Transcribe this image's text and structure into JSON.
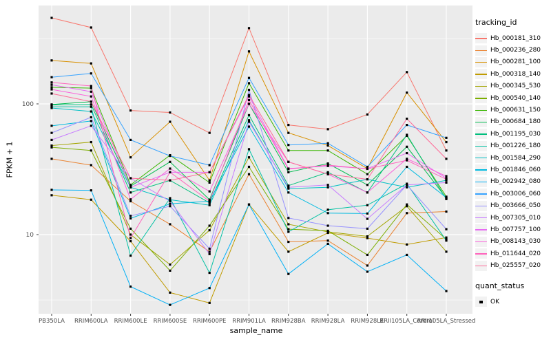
{
  "chart_data": {
    "type": "line",
    "title": "",
    "xlabel": "sample_name",
    "ylabel": "FPKM + 1",
    "x_categories": [
      "PB350LA",
      "RRIM600LA",
      "RRIM600LE",
      "RRIM600SE",
      "RRIM600PE",
      "RRIM901LA",
      "RRIM928BA",
      "RRIM928LA",
      "RRIM928LE",
      "RRII105LA_Control",
      "RRII105LA_Stressed"
    ],
    "y_scale": "log10",
    "y_major_ticks": [
      100,
      10
    ],
    "y_minor_ticks": [
      316,
      31.6,
      3.16
    ],
    "ylim": [
      2.0,
      620
    ],
    "grid": true,
    "legend_position": "right",
    "legend_title": "tracking_id",
    "legend2_title": "quant_status",
    "quant_status": {
      "label": "OK"
    },
    "panel_color": "#EBEBEB",
    "grid_color": "#FFFFFF",
    "axis_text_color": "#4D4D4D",
    "point_color": "#000000",
    "series": [
      {
        "name": "Hb_000181_310",
        "color": "#F8766D",
        "values": [
          455,
          384,
          89,
          86,
          60,
          380,
          69,
          64,
          83,
          175,
          44
        ]
      },
      {
        "name": "Hb_000236_280",
        "color": "#EA8331",
        "values": [
          38,
          34,
          18,
          12,
          7.4,
          29,
          8.8,
          9,
          5.8,
          14.6,
          15
        ]
      },
      {
        "name": "Hb_000281_100",
        "color": "#D89000",
        "values": [
          215,
          204,
          39,
          73,
          26,
          252,
          60,
          48,
          32,
          122,
          51
        ]
      },
      {
        "name": "Hb_000318_140",
        "color": "#C09B00",
        "values": [
          20,
          18.5,
          8.9,
          3.6,
          3,
          17,
          7.4,
          10.3,
          9.4,
          8.4,
          9.5
        ]
      },
      {
        "name": "Hb_000345_530",
        "color": "#A3A500",
        "values": [
          48,
          51,
          10,
          5.9,
          10.8,
          39,
          12,
          10.5,
          9.7,
          16.5,
          7.4
        ]
      },
      {
        "name": "Hb_000540_140",
        "color": "#7CAE00",
        "values": [
          46.5,
          44,
          11.1,
          5.3,
          11.7,
          33,
          11,
          10.7,
          7,
          17,
          9.2
        ]
      },
      {
        "name": "Hb_000631_150",
        "color": "#39B600",
        "values": [
          134,
          132,
          24,
          40.5,
          25,
          144,
          44,
          44,
          29,
          57,
          19.5
        ]
      },
      {
        "name": "Hb_000684_180",
        "color": "#00BB4E",
        "values": [
          99,
          104,
          23.5,
          36,
          18.5,
          100,
          30,
          35,
          24,
          47,
          19
        ]
      },
      {
        "name": "Hb_001195_030",
        "color": "#00BF7D",
        "values": [
          98,
          99,
          21,
          26,
          17.5,
          82,
          23.7,
          30,
          21,
          58,
          18.7
        ]
      },
      {
        "name": "Hb_001226_180",
        "color": "#00C1A3",
        "values": [
          95,
          95,
          6.9,
          19,
          5.1,
          45,
          10.5,
          15.5,
          16.8,
          24.5,
          9
        ]
      },
      {
        "name": "Hb_001584_290",
        "color": "#00BFC4",
        "values": [
          93,
          87.5,
          23,
          18.5,
          16.8,
          75,
          22.5,
          23,
          26.5,
          23,
          26
        ]
      },
      {
        "name": "Hb_001846_060",
        "color": "#00BAE0",
        "values": [
          68,
          74,
          13.3,
          17.2,
          18,
          67,
          21,
          14.6,
          14.5,
          33,
          19.2
        ]
      },
      {
        "name": "Hb_002942_080",
        "color": "#00B0F6",
        "values": [
          22,
          21.8,
          4,
          2.9,
          3.9,
          17,
          5,
          8.5,
          5.2,
          7,
          3.7
        ]
      },
      {
        "name": "Hb_003006_060",
        "color": "#35A2FF",
        "values": [
          160,
          171,
          53,
          40,
          34,
          158,
          48.5,
          50,
          33,
          69,
          55
        ]
      },
      {
        "name": "Hb_003666_050",
        "color": "#9590FF",
        "values": [
          60,
          79,
          13.9,
          16.5,
          7.8,
          128,
          13.4,
          11.7,
          11.1,
          24,
          11
        ]
      },
      {
        "name": "Hb_007305_010",
        "color": "#C77CFF",
        "values": [
          53,
          68,
          27,
          18,
          7.1,
          73,
          23,
          24,
          13.2,
          24,
          25
        ]
      },
      {
        "name": "Hb_007757_100",
        "color": "#E76BF3",
        "values": [
          140,
          124,
          23,
          30,
          30,
          114,
          32,
          33.5,
          32,
          42,
          27
        ]
      },
      {
        "name": "Hb_008143_030",
        "color": "#FA62DB",
        "values": [
          129,
          114,
          18.6,
          32,
          21.4,
          100,
          36,
          29,
          21,
          38,
          28
        ]
      },
      {
        "name": "Hb_011644_020",
        "color": "#FF62BC",
        "values": [
          146,
          137,
          9.4,
          30,
          18,
          107,
          31.7,
          34,
          31.8,
          37,
          26.5
        ]
      },
      {
        "name": "Hb_025557_020",
        "color": "#FF6A98",
        "values": [
          120,
          104,
          27,
          26,
          30,
          117,
          36,
          29,
          26.5,
          77,
          38
        ]
      }
    ]
  },
  "layout_labels": {
    "y_tick_100": "100",
    "y_tick_10": "10"
  }
}
